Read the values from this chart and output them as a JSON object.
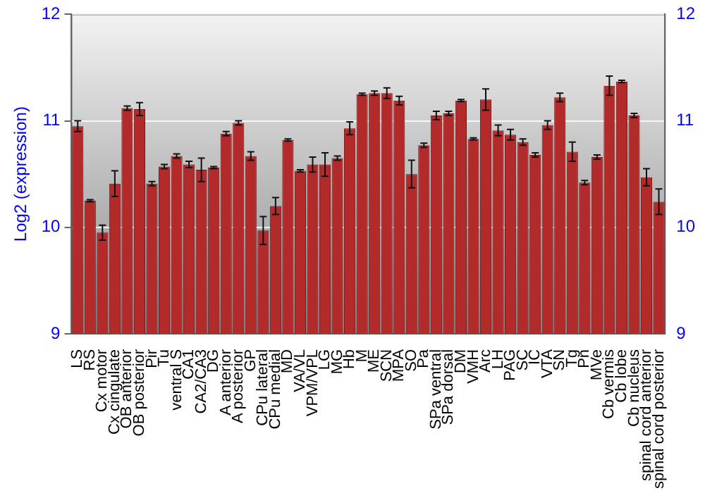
{
  "chart_data": {
    "type": "bar",
    "ylabel": "Log2 (expression)",
    "categories": [
      "LS",
      "RS",
      "Cx motor",
      "Cx cingulate",
      "OB anterior",
      "OB posterior",
      "Pir",
      "Tu",
      "ventral S",
      "CA1",
      "CA2/CA3",
      "DG",
      "A anterior",
      "A posterior",
      "GP",
      "CPu lateral",
      "CPu medial",
      "MD",
      "VA/VL",
      "VPM/VPL",
      "LG",
      "MG",
      "Hb",
      "M",
      "ME",
      "SCN",
      "MPA",
      "SO",
      "Pa",
      "SPa ventral",
      "SPa dorsal",
      "DM",
      "VMH",
      "Arc",
      "LH",
      "PAG",
      "SC",
      "IC",
      "VTA",
      "SN",
      "Tg",
      "Pn",
      "MVe",
      "Cb vermis",
      "Cb lobe",
      "Cb nucleus",
      "spinal cord anterior",
      "spinal cord posterior"
    ],
    "values": [
      10.95,
      10.25,
      9.95,
      10.41,
      11.12,
      11.11,
      10.41,
      10.57,
      10.67,
      10.59,
      10.54,
      10.56,
      10.88,
      10.98,
      10.67,
      9.97,
      10.2,
      10.82,
      10.53,
      10.59,
      10.59,
      10.65,
      10.93,
      11.25,
      11.26,
      11.26,
      11.19,
      10.5,
      10.77,
      11.05,
      11.07,
      11.19,
      10.83,
      11.2,
      10.91,
      10.87,
      10.8,
      10.68,
      10.96,
      11.22,
      10.71,
      10.42,
      10.66,
      11.33,
      11.37,
      11.05,
      10.47,
      10.24
    ],
    "errors": [
      0.05,
      0.01,
      0.07,
      0.12,
      0.02,
      0.06,
      0.02,
      0.02,
      0.02,
      0.03,
      0.11,
      0.01,
      0.02,
      0.02,
      0.04,
      0.13,
      0.08,
      0.01,
      0.01,
      0.07,
      0.11,
      0.02,
      0.06,
      0.01,
      0.02,
      0.05,
      0.04,
      0.13,
      0.02,
      0.04,
      0.02,
      0.01,
      0.01,
      0.1,
      0.05,
      0.05,
      0.03,
      0.02,
      0.04,
      0.04,
      0.09,
      0.02,
      0.02,
      0.09,
      0.01,
      0.02,
      0.08,
      0.12
    ],
    "color": "#b22a2a",
    "ylim": [
      9,
      12
    ],
    "yticks": [
      9,
      10,
      11,
      12
    ],
    "y2lim": [
      9,
      12
    ],
    "y2ticks": [
      9,
      10,
      11,
      12
    ],
    "grid": "y",
    "legend": false
  }
}
